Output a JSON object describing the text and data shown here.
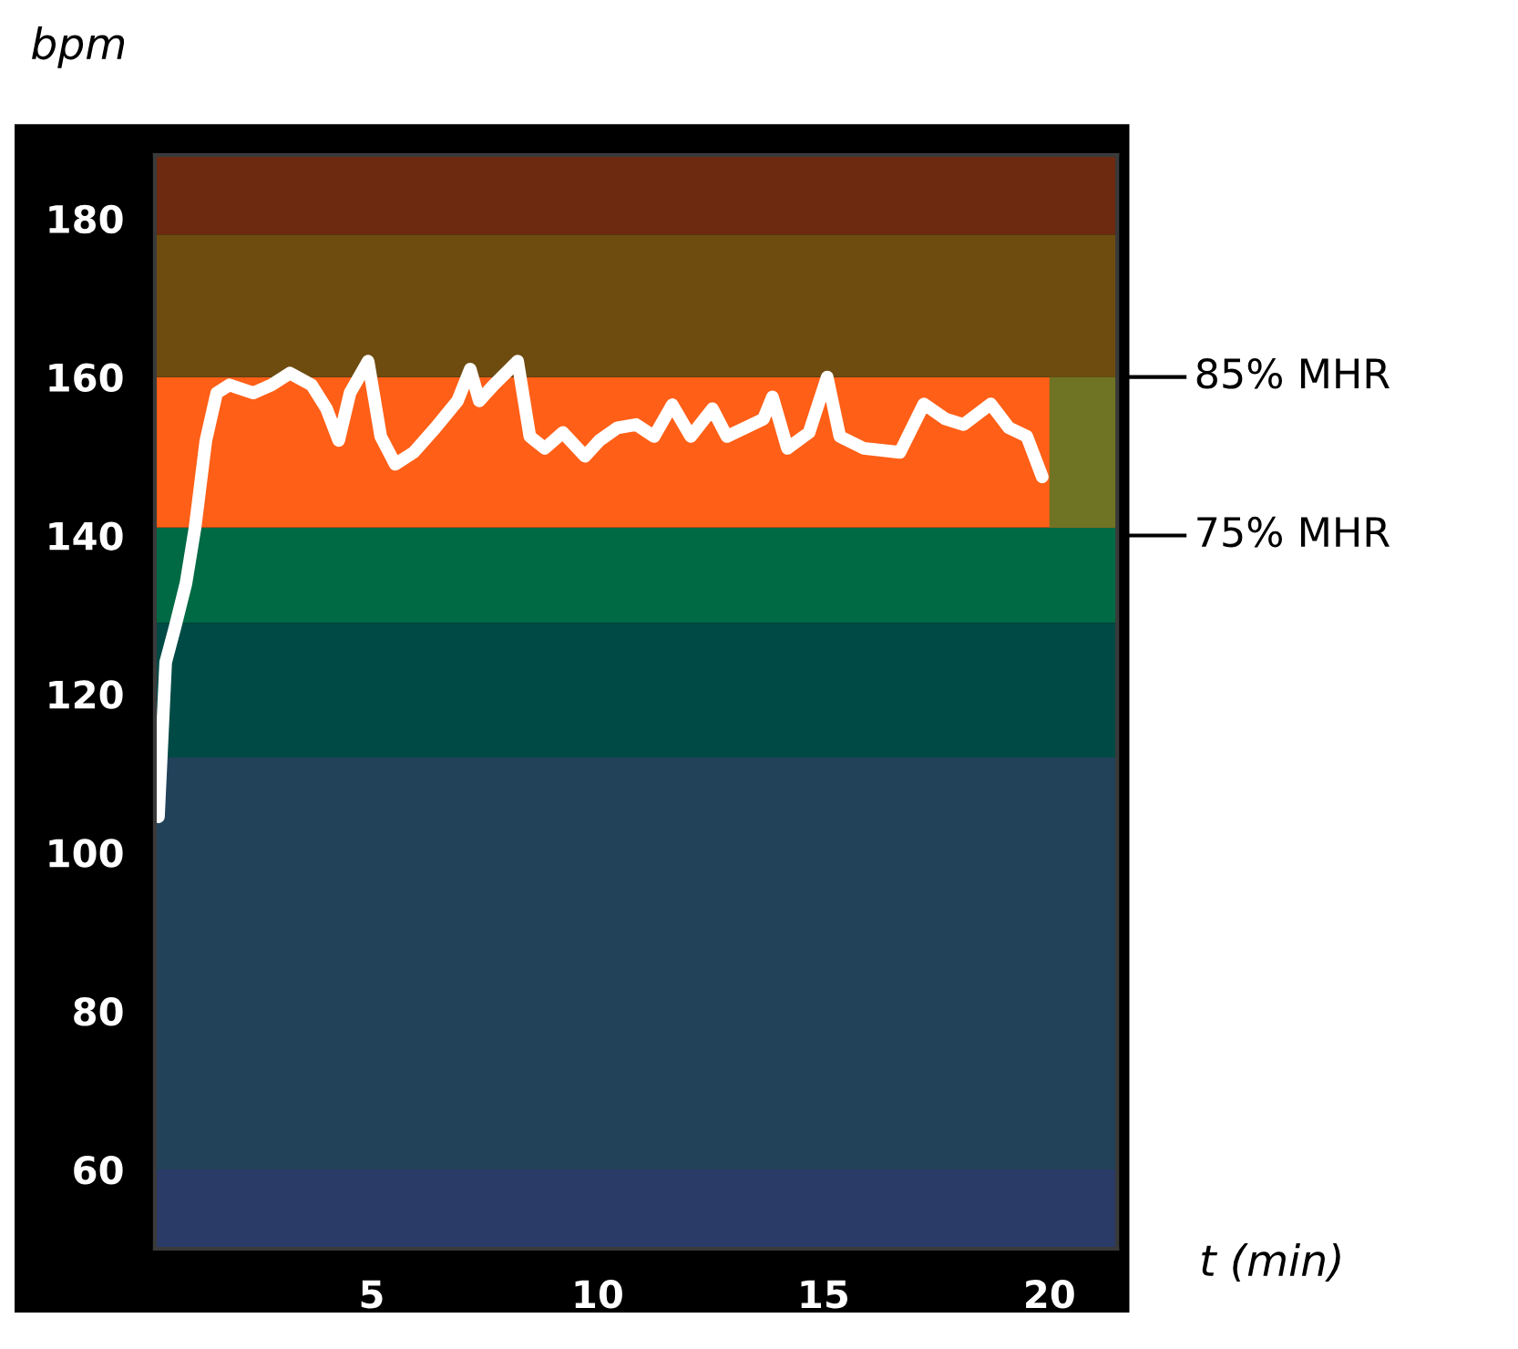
{
  "chart_data": {
    "type": "line",
    "ylabel": "bpm",
    "xlabel": "t (min)",
    "xlim": [
      0.2,
      21.5
    ],
    "xticks": [
      5,
      10,
      15,
      20
    ],
    "ylim": [
      50,
      188
    ],
    "yticks": [
      60,
      80,
      100,
      120,
      140,
      160,
      180
    ],
    "grid": false,
    "series": [
      {
        "color": "#ffffff",
        "x": [
          0.28,
          0.44,
          0.65,
          0.89,
          1.09,
          1.33,
          1.57,
          1.85,
          2.38,
          2.78,
          3.19,
          3.67,
          4.0,
          4.27,
          4.52,
          4.92,
          5.2,
          5.52,
          5.93,
          6.41,
          6.9,
          7.18,
          7.38,
          7.7,
          8.23,
          8.5,
          8.83,
          9.23,
          9.72,
          10.04,
          10.44,
          10.85,
          11.25,
          11.65,
          12.06,
          12.54,
          12.86,
          13.27,
          13.67,
          13.87,
          14.2,
          14.68,
          15.08,
          15.36,
          15.89,
          16.69,
          17.22,
          17.7,
          18.1,
          18.7,
          19.1,
          19.5,
          19.84
        ],
        "values": [
          104.5,
          124,
          128.5,
          134,
          141,
          152,
          158,
          159,
          158,
          159,
          160.5,
          159,
          156,
          152,
          158,
          162,
          152.5,
          149,
          150.5,
          153.6,
          157,
          161,
          157,
          159,
          162,
          152.5,
          151,
          153,
          150,
          152,
          153.6,
          154,
          152.5,
          156.5,
          152.5,
          156,
          152.5,
          153.6,
          154.7,
          157.5,
          151,
          153,
          160,
          152.5,
          151,
          150.5,
          156.6,
          154.7,
          154,
          156.6,
          153.6,
          152.5,
          147.4
        ]
      }
    ],
    "bands": [
      {
        "axis": "y",
        "from": 50,
        "to": 60,
        "color": "#2b3b68"
      },
      {
        "axis": "y",
        "from": 60,
        "to": 112,
        "color": "#22425a"
      },
      {
        "axis": "y",
        "from": 112,
        "to": 129,
        "color": "#004a45"
      },
      {
        "axis": "y",
        "from": 129,
        "to": 141,
        "color": "#006a45"
      },
      {
        "axis": "y",
        "from": 141,
        "to": 160,
        "color": "#ff5f17"
      },
      {
        "axis": "x",
        "from": 20,
        "to": 21.5,
        "color": "#6e7424"
      },
      {
        "axis": "y",
        "from": 160,
        "to": 178,
        "color": "#6e4c10"
      },
      {
        "axis": "y",
        "from": 178,
        "to": 188,
        "color": "#6e2a10"
      }
    ],
    "ref_lines": [
      {
        "axis": "y",
        "value": 160,
        "label": "85% MHR",
        "color": "#000000"
      },
      {
        "axis": "y",
        "value": 140,
        "label": "75% MHR",
        "color": "#000000"
      }
    ]
  }
}
